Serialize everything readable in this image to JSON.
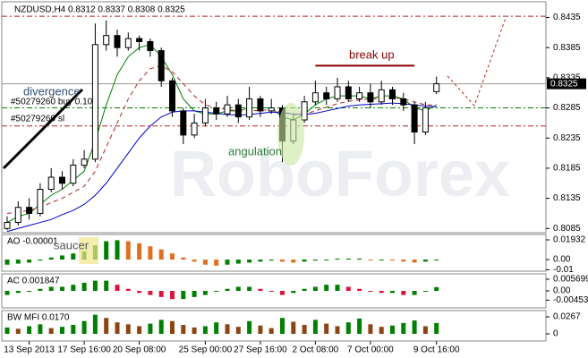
{
  "chart_data": [
    {
      "type": "candlestick",
      "title": "NZDUSD,H4 0.8312 0.8337 0.8308 0.8325",
      "watermark": "RoboForex",
      "categories": [
        null,
        null,
        "13 Sep 2013",
        null,
        null,
        null,
        null,
        "17 Sep 16:00",
        null,
        null,
        null,
        null,
        "20 Sep 08:00",
        null,
        null,
        null,
        null,
        null,
        "25 Sep 00:00",
        null,
        null,
        null,
        null,
        "27 Sep 16:00",
        null,
        null,
        null,
        null,
        "2 Oct 08:00",
        null,
        null,
        null,
        null,
        "7 Oct 00:00",
        null,
        null,
        null,
        null,
        null,
        "9 Oct 16:00"
      ],
      "open": [
        0.8085,
        0.8095,
        0.812,
        0.811,
        0.815,
        0.817,
        0.816,
        0.819,
        0.82,
        0.839,
        0.8405,
        0.8385,
        0.84,
        0.8395,
        0.838,
        0.833,
        0.828,
        0.824,
        0.826,
        0.8285,
        0.8275,
        0.829,
        0.827,
        0.83,
        0.828,
        0.8285,
        0.823,
        0.8265,
        0.8295,
        0.831,
        0.83,
        0.832,
        0.83,
        0.831,
        0.8295,
        0.8315,
        0.83,
        0.829,
        0.8245,
        0.8312
      ],
      "high": [
        0.8105,
        0.813,
        0.8135,
        0.816,
        0.8185,
        0.818,
        0.82,
        0.8215,
        0.8425,
        0.843,
        0.8415,
        0.841,
        0.8405,
        0.84,
        0.8385,
        0.8335,
        0.8285,
        0.8275,
        0.83,
        0.8295,
        0.8305,
        0.83,
        0.832,
        0.8305,
        0.83,
        0.829,
        0.8275,
        0.8305,
        0.833,
        0.832,
        0.8335,
        0.833,
        0.832,
        0.8325,
        0.833,
        0.832,
        0.831,
        0.8295,
        0.8295,
        0.8337
      ],
      "low": [
        0.8082,
        0.809,
        0.81,
        0.8105,
        0.8145,
        0.815,
        0.8155,
        0.8185,
        0.8195,
        0.838,
        0.837,
        0.838,
        0.838,
        0.837,
        0.832,
        0.827,
        0.8225,
        0.8235,
        0.8255,
        0.8265,
        0.827,
        0.826,
        0.8265,
        0.827,
        0.8275,
        0.8195,
        0.8225,
        0.826,
        0.829,
        0.829,
        0.8295,
        0.8295,
        0.8295,
        0.8285,
        0.829,
        0.829,
        0.828,
        0.8225,
        0.824,
        0.8308
      ],
      "close": [
        0.8095,
        0.812,
        0.811,
        0.815,
        0.817,
        0.816,
        0.819,
        0.82,
        0.839,
        0.8405,
        0.8385,
        0.84,
        0.8395,
        0.838,
        0.833,
        0.828,
        0.824,
        0.826,
        0.8285,
        0.8275,
        0.829,
        0.827,
        0.83,
        0.828,
        0.8285,
        0.823,
        0.8265,
        0.8295,
        0.831,
        0.83,
        0.832,
        0.83,
        0.831,
        0.8295,
        0.8315,
        0.83,
        0.829,
        0.8245,
        0.8285,
        0.8325
      ],
      "lines": [
        {
          "color": "#008000",
          "dash": false,
          "values": [
            0.8095,
            0.8105,
            0.811,
            0.8125,
            0.814,
            0.815,
            0.8165,
            0.818,
            0.823,
            0.829,
            0.834,
            0.837,
            0.8385,
            0.839,
            0.837,
            0.834,
            0.83,
            0.828,
            0.8275,
            0.8275,
            0.828,
            0.828,
            0.8285,
            0.8285,
            0.8285,
            0.827,
            0.8265,
            0.8275,
            0.829,
            0.83,
            0.8305,
            0.8305,
            0.8305,
            0.83,
            0.8305,
            0.8305,
            0.83,
            0.8285,
            0.828,
            0.829
          ]
        },
        {
          "color": "#b22222",
          "dash": true,
          "values": [
            0.811,
            0.8112,
            0.8115,
            0.812,
            0.8128,
            0.8135,
            0.8145,
            0.8155,
            0.818,
            0.822,
            0.826,
            0.83,
            0.833,
            0.835,
            0.8355,
            0.8345,
            0.8325,
            0.8305,
            0.829,
            0.8285,
            0.8282,
            0.828,
            0.828,
            0.8281,
            0.8282,
            0.8278,
            0.8274,
            0.8275,
            0.828,
            0.8286,
            0.8292,
            0.8296,
            0.8298,
            0.83,
            0.8301,
            0.8302,
            0.83,
            0.8295,
            0.829,
            0.829
          ]
        },
        {
          "color": "#0000cd",
          "dash": false,
          "values": [
            0.808,
            0.8085,
            0.809,
            0.8095,
            0.81,
            0.8108,
            0.8115,
            0.8125,
            0.814,
            0.816,
            0.8185,
            0.821,
            0.8235,
            0.8255,
            0.827,
            0.8278,
            0.828,
            0.828,
            0.8278,
            0.8276,
            0.8274,
            0.8273,
            0.8274,
            0.8276,
            0.8278,
            0.8277,
            0.8275,
            0.8274,
            0.8276,
            0.828,
            0.8284,
            0.8288,
            0.829,
            0.8291,
            0.8292,
            0.8293,
            0.8292,
            0.829,
            0.8288,
            0.8287
          ]
        }
      ],
      "levels": [
        {
          "value": 0.8437,
          "color": "#b22222"
        },
        {
          "value": 0.8285,
          "color": "#008000"
        },
        {
          "value": 0.8255,
          "color": "#b22222"
        }
      ],
      "last_price": 0.8325,
      "ylim": [
        0.8078,
        0.8461
      ],
      "yticks": [
        0.8435,
        0.8385,
        0.8335,
        0.8285,
        0.8235,
        0.8185,
        0.8135,
        0.8085
      ],
      "annotations": {
        "divergence": "divergence",
        "buy": "#50279260 buy 0.10",
        "sl": "#50279260 sl",
        "break_up": "break up",
        "break_level": 0.8355,
        "angulation": "angulation"
      }
    },
    {
      "type": "bar",
      "title": "AO -0.00001",
      "annotation": "saucer",
      "values": [
        -0.005,
        -0.004,
        -0.003,
        -0.001,
        0.002,
        0.004,
        0.006,
        0.008,
        0.014,
        0.018,
        0.019,
        0.018,
        0.016,
        0.013,
        0.01,
        0.006,
        0.002,
        -0.002,
        -0.005,
        -0.006,
        -0.005,
        -0.004,
        -0.003,
        -0.002,
        -0.001,
        -0.002,
        -0.003,
        -0.002,
        -0.001,
        0.0,
        0.001,
        0.001,
        0.001,
        0.0,
        0.0,
        -0.001,
        -0.002,
        -0.003,
        -0.002,
        -1e-05
      ],
      "colors": [
        "#008000",
        "#e07020"
      ],
      "ylim": [
        -0.0114,
        0.0246
      ],
      "yticks": [
        0.01932,
        {
          "value": 0,
          "label": "0.00"
        },
        -0.01
      ]
    },
    {
      "type": "bar",
      "title": "AC 0.001847",
      "values": [
        -0.002,
        -0.001,
        0.0,
        0.001,
        0.002,
        0.002,
        0.003,
        0.004,
        0.005,
        0.005,
        0.003,
        0.001,
        -0.001,
        -0.002,
        -0.003,
        -0.004,
        -0.004,
        -0.003,
        -0.002,
        0.0,
        0.001,
        0.002,
        0.002,
        0.001,
        0.0,
        -0.002,
        -0.001,
        0.001,
        0.002,
        0.003,
        0.003,
        0.002,
        0.001,
        0.0,
        -0.001,
        -0.001,
        -0.002,
        -0.002,
        0.0,
        0.001847
      ],
      "colors": [
        "#008000",
        "#dc143c"
      ],
      "ylim": [
        -0.00832,
        0.00833
      ],
      "yticks": [
        0.005699,
        {
          "value": 0,
          "label": "0.00"
        },
        -0.00453
      ]
    },
    {
      "type": "bar",
      "title": "BW MFI 0.0170",
      "values": [
        0.01,
        0.008,
        0.012,
        0.015,
        0.009,
        0.011,
        0.014,
        0.02,
        0.03,
        0.025,
        0.018,
        0.015,
        0.012,
        0.016,
        0.022,
        0.02,
        0.014,
        0.01,
        0.012,
        0.018,
        0.015,
        0.011,
        0.02,
        0.013,
        0.009,
        0.025,
        0.019,
        0.014,
        0.022,
        0.016,
        0.012,
        0.018,
        0.024,
        0.015,
        0.011,
        0.013,
        0.017,
        0.021,
        0.012,
        0.017
      ],
      "colors": [
        "#008000",
        "#8b4513"
      ],
      "ylim": [
        -0.0112,
        0.0365
      ],
      "yticks": [
        0.0267,
        0
      ]
    }
  ]
}
